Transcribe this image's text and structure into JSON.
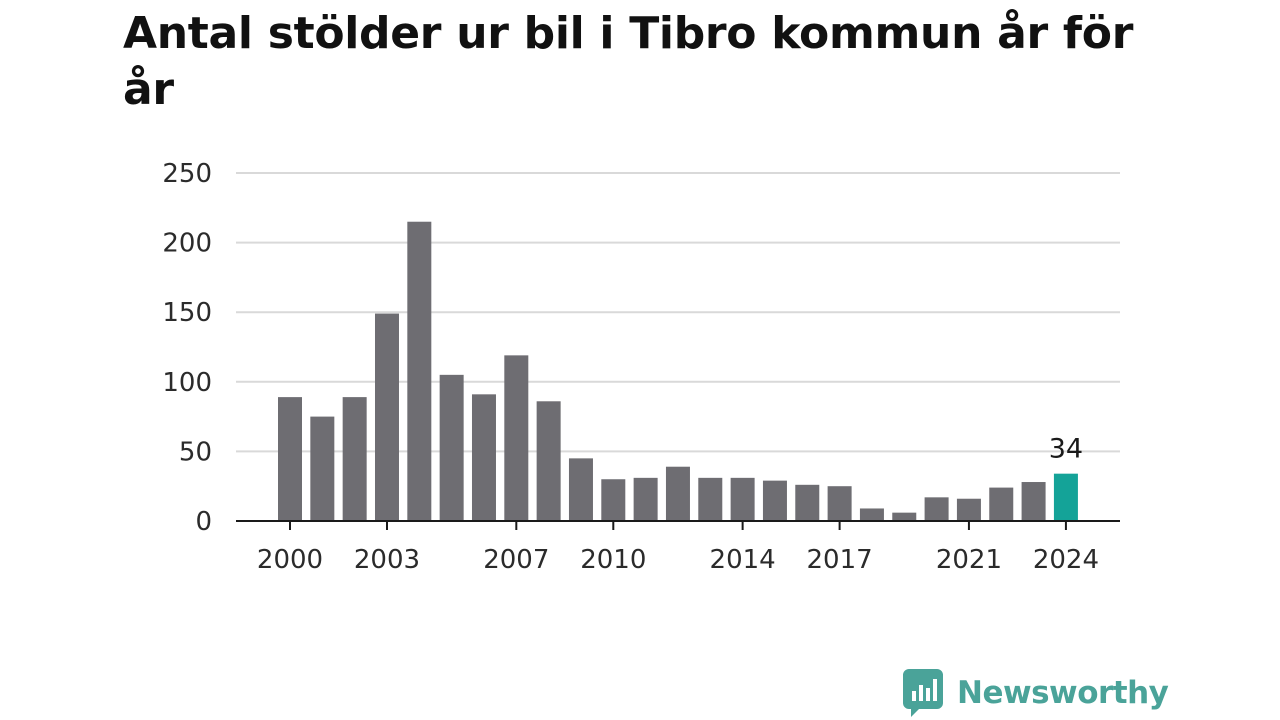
{
  "chart_data": {
    "type": "bar",
    "title": "Antal stölder ur bil i Tibro kommun år för år",
    "xlabel": "",
    "ylabel": "",
    "categories": [
      "2000",
      "2001",
      "2002",
      "2003",
      "2004",
      "2005",
      "2006",
      "2007",
      "2008",
      "2009",
      "2010",
      "2011",
      "2012",
      "2013",
      "2014",
      "2015",
      "2016",
      "2017",
      "2018",
      "2019",
      "2020",
      "2021",
      "2022",
      "2023",
      "2024"
    ],
    "values": [
      89,
      75,
      89,
      149,
      215,
      105,
      91,
      119,
      86,
      45,
      30,
      31,
      39,
      31,
      31,
      29,
      26,
      25,
      9,
      6,
      17,
      16,
      24,
      28,
      34
    ],
    "x_tick_labels": [
      "2000",
      "2003",
      "2007",
      "2010",
      "2014",
      "2017",
      "2021",
      "2024"
    ],
    "y_ticks": [
      0,
      50,
      100,
      150,
      200,
      250
    ],
    "ylim": [
      0,
      250
    ],
    "grid": true,
    "legend": "none",
    "highlight": {
      "category": "2024",
      "label": "34"
    },
    "colors": {
      "bar": "#6e6d72",
      "highlight": "#14a398",
      "grid": "#d9d9d9",
      "axis": "#1a1a1a"
    }
  },
  "brand": {
    "name": "Newsworthy",
    "icon": "newsworthy-logo-icon",
    "color": "#4aa399"
  }
}
